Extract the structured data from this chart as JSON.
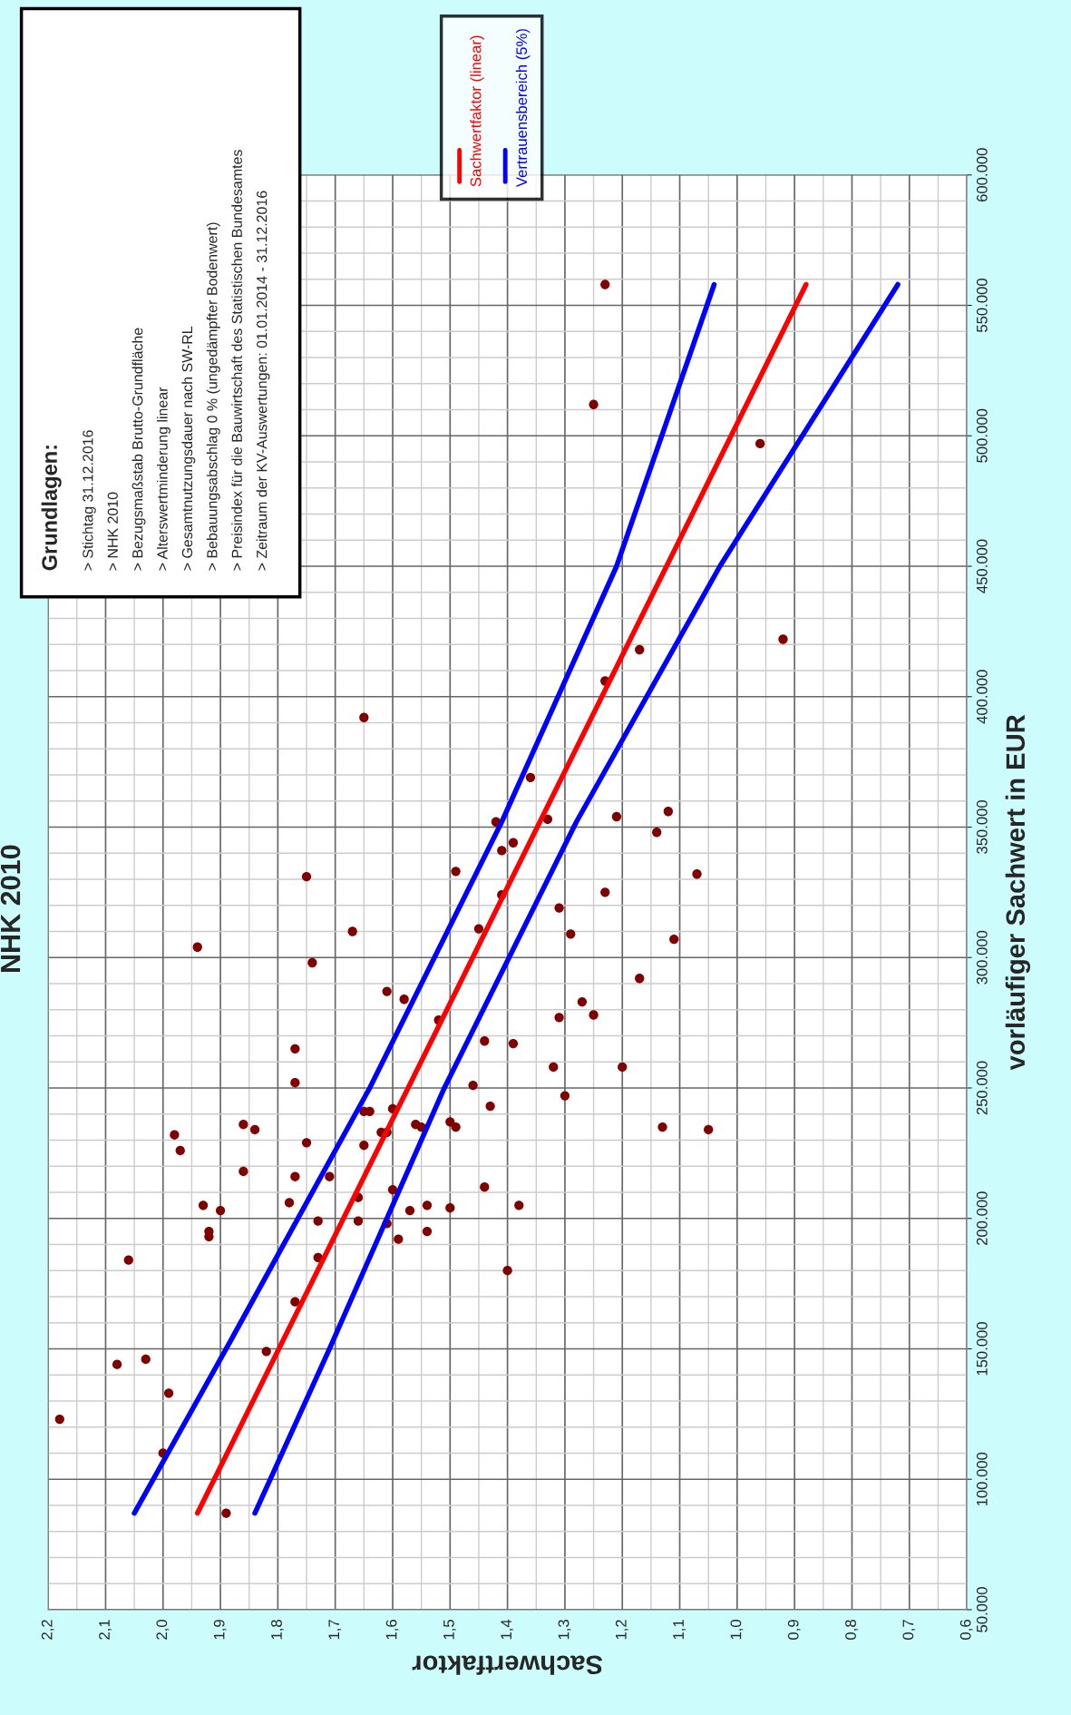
{
  "chart_data": {
    "type": "scatter",
    "title": "NHK 2010",
    "xlabel": "Sachwertfaktor",
    "ylabel": "vorläufiger Sachwert in EUR",
    "xlim": [
      2.2,
      0.6
    ],
    "ylim": [
      50000,
      600000
    ],
    "xticks": [
      {
        "value": 2.2,
        "label": "2,2"
      },
      {
        "value": 2.1,
        "label": "2,1"
      },
      {
        "value": 2.0,
        "label": "2,0"
      },
      {
        "value": 1.9,
        "label": "1,9"
      },
      {
        "value": 1.8,
        "label": "1,8"
      },
      {
        "value": 1.7,
        "label": "1,7"
      },
      {
        "value": 1.6,
        "label": "1,6"
      },
      {
        "value": 1.5,
        "label": "1,5"
      },
      {
        "value": 1.4,
        "label": "1,4"
      },
      {
        "value": 1.3,
        "label": "1,3"
      },
      {
        "value": 1.2,
        "label": "1,2"
      },
      {
        "value": 1.1,
        "label": "1,1"
      },
      {
        "value": 1.0,
        "label": "1,0"
      },
      {
        "value": 0.9,
        "label": "0,9"
      },
      {
        "value": 0.8,
        "label": "0,8"
      },
      {
        "value": 0.7,
        "label": "0,7"
      },
      {
        "value": 0.6,
        "label": "0,6"
      }
    ],
    "yticks": [
      {
        "value": 50000,
        "label": "50.000"
      },
      {
        "value": 100000,
        "label": "100.000"
      },
      {
        "value": 150000,
        "label": "150.000"
      },
      {
        "value": 200000,
        "label": "200.000"
      },
      {
        "value": 250000,
        "label": "250.000"
      },
      {
        "value": 300000,
        "label": "300.000"
      },
      {
        "value": 350000,
        "label": "350.000"
      },
      {
        "value": 400000,
        "label": "400.000"
      },
      {
        "value": 450000,
        "label": "450.000"
      },
      {
        "value": 500000,
        "label": "500.000"
      },
      {
        "value": 550000,
        "label": "550.000"
      },
      {
        "value": 600000,
        "label": "600.000"
      }
    ],
    "grid": true,
    "legend": "top",
    "annotations": [
      "Grundlagen:",
      "> Stichtag 31.12.2016",
      "> NHK 2010",
      "> Bezugsmaßstab Brutto-Grundfläche",
      "> Alterswertminderung linear",
      "> Gesamtnutzungsdauer nach SW-RL",
      "> Bebauungsabschlag 0 % (ungedämpfter Bodenwert)",
      "> Preisindex für die Bauwirtschaft des Statistischen Bundesamtes",
      "> Zeitraum der KV-Auswertungen: 01.01.2014 - 31.12.2016"
    ],
    "series": [
      {
        "type": "scatter",
        "marker": "circle",
        "color": "#800000",
        "x": [
          2.18,
          2.06,
          2.08,
          2.03,
          2.0,
          1.99,
          1.98,
          1.97,
          1.94,
          1.93,
          1.92,
          1.92,
          1.9,
          1.89,
          1.86,
          1.86,
          1.84,
          1.82,
          1.78,
          1.77,
          1.77,
          1.77,
          1.77,
          1.75,
          1.75,
          1.74,
          1.73,
          1.73,
          1.71,
          1.67,
          1.66,
          1.66,
          1.65,
          1.65,
          1.65,
          1.64,
          1.62,
          1.61,
          1.61,
          1.61,
          1.6,
          1.6,
          1.59,
          1.58,
          1.57,
          1.56,
          1.55,
          1.54,
          1.54,
          1.52,
          1.5,
          1.5,
          1.49,
          1.49,
          1.46,
          1.45,
          1.44,
          1.44,
          1.43,
          1.42,
          1.41,
          1.41,
          1.4,
          1.39,
          1.38,
          1.39,
          1.36,
          1.33,
          1.32,
          1.31,
          1.31,
          1.3,
          1.29,
          1.27,
          1.25,
          1.25,
          1.23,
          1.23,
          1.23,
          1.21,
          1.2,
          1.17,
          1.17,
          1.14,
          1.13,
          1.12,
          1.11,
          1.07,
          1.05,
          0.96,
          0.92
        ],
        "values": [
          123000,
          184000,
          144000,
          146000,
          110000,
          133000,
          232000,
          226000,
          304000,
          205000,
          195000,
          193000,
          203000,
          87000,
          236000,
          218000,
          234000,
          149000,
          206000,
          265000,
          216000,
          168000,
          252000,
          229000,
          331000,
          298000,
          199000,
          185000,
          216000,
          310000,
          199000,
          208000,
          392000,
          228000,
          241000,
          241000,
          233000,
          233000,
          287000,
          198000,
          242000,
          211000,
          192000,
          284000,
          203000,
          236000,
          235000,
          205000,
          195000,
          276000,
          204000,
          237000,
          235000,
          333000,
          251000,
          311000,
          212000,
          268000,
          243000,
          352000,
          341000,
          324000,
          180000,
          267000,
          205000,
          344000,
          369000,
          353000,
          258000,
          277000,
          319000,
          247000,
          309000,
          283000,
          512000,
          278000,
          325000,
          558000,
          406000,
          354000,
          258000,
          292000,
          418000,
          348000,
          235000,
          356000,
          307000,
          332000,
          234000,
          497000,
          422000
        ]
      },
      {
        "type": "line",
        "name": "Sachwertfaktor (linear)",
        "color": "#ff0000",
        "x": [
          1.94,
          0.88
        ],
        "values": [
          87000,
          558000
        ]
      },
      {
        "type": "line",
        "name": "Vertrauensbereich (5%)",
        "color": "#0000ff",
        "x": [
          2.05,
          1.89,
          1.64,
          1.41,
          1.21,
          1.04
        ],
        "values": [
          87000,
          150000,
          250000,
          352000,
          450000,
          558000
        ]
      },
      {
        "type": "line",
        "color": "#0000ff",
        "x": [
          1.84,
          1.71,
          1.51,
          1.28,
          1.03,
          0.72
        ],
        "values": [
          87000,
          150000,
          250000,
          352000,
          450000,
          558000
        ]
      }
    ]
  }
}
